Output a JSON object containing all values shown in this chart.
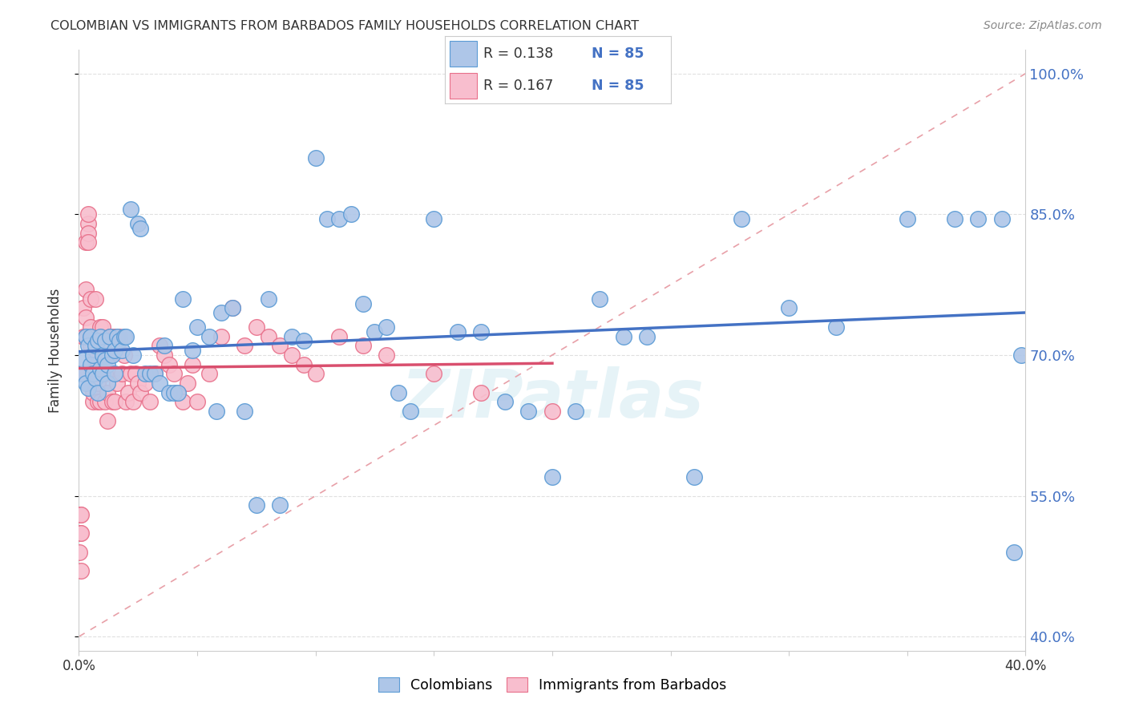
{
  "title": "COLOMBIAN VS IMMIGRANTS FROM BARBADOS FAMILY HOUSEHOLDS CORRELATION CHART",
  "source": "Source: ZipAtlas.com",
  "ylabel": "Family Households",
  "xlim": [
    0.0,
    0.4
  ],
  "ylim": [
    0.385,
    1.025
  ],
  "yticks": [
    0.4,
    0.55,
    0.7,
    0.85,
    1.0
  ],
  "xtick_positions": [
    0.0,
    0.05,
    0.1,
    0.15,
    0.2,
    0.25,
    0.3,
    0.35,
    0.4
  ],
  "xtick_labels": [
    "0.0%",
    "",
    "",
    "",
    "",
    "",
    "",
    "",
    "40.0%"
  ],
  "colombian_color": "#aec6e8",
  "barbados_color": "#f8bece",
  "colombian_edge_color": "#5b9bd5",
  "barbados_edge_color": "#e8708a",
  "colombian_line_color": "#4472c4",
  "barbados_line_color": "#d94f6e",
  "diag_line_color": "#e8a0a8",
  "legend_r_col": "R = 0.138",
  "legend_n_col": "N = 85",
  "legend_r_bar": "R = 0.167",
  "legend_n_bar": "N = 85",
  "legend_text_color": "#333333",
  "legend_val_color": "#4472c4",
  "colombian_R": 0.138,
  "barbados_R": 0.167,
  "colombian_x": [
    0.001,
    0.002,
    0.003,
    0.003,
    0.004,
    0.004,
    0.005,
    0.005,
    0.006,
    0.006,
    0.007,
    0.007,
    0.008,
    0.008,
    0.009,
    0.009,
    0.01,
    0.01,
    0.011,
    0.011,
    0.012,
    0.012,
    0.013,
    0.014,
    0.015,
    0.015,
    0.016,
    0.017,
    0.018,
    0.019,
    0.02,
    0.022,
    0.023,
    0.025,
    0.026,
    0.028,
    0.03,
    0.032,
    0.034,
    0.036,
    0.038,
    0.04,
    0.042,
    0.044,
    0.048,
    0.05,
    0.055,
    0.058,
    0.06,
    0.065,
    0.07,
    0.075,
    0.08,
    0.085,
    0.09,
    0.095,
    0.1,
    0.105,
    0.11,
    0.115,
    0.12,
    0.125,
    0.13,
    0.135,
    0.14,
    0.15,
    0.16,
    0.17,
    0.18,
    0.19,
    0.2,
    0.21,
    0.22,
    0.23,
    0.24,
    0.26,
    0.28,
    0.3,
    0.32,
    0.35,
    0.37,
    0.38,
    0.39,
    0.395,
    0.398
  ],
  "colombian_y": [
    0.68,
    0.695,
    0.67,
    0.72,
    0.665,
    0.71,
    0.69,
    0.72,
    0.7,
    0.68,
    0.71,
    0.675,
    0.66,
    0.715,
    0.685,
    0.72,
    0.7,
    0.68,
    0.695,
    0.715,
    0.67,
    0.69,
    0.72,
    0.7,
    0.705,
    0.68,
    0.72,
    0.715,
    0.705,
    0.72,
    0.72,
    0.855,
    0.7,
    0.84,
    0.835,
    0.68,
    0.68,
    0.68,
    0.67,
    0.71,
    0.66,
    0.66,
    0.66,
    0.76,
    0.705,
    0.73,
    0.72,
    0.64,
    0.745,
    0.75,
    0.64,
    0.54,
    0.76,
    0.54,
    0.72,
    0.715,
    0.91,
    0.845,
    0.845,
    0.85,
    0.755,
    0.725,
    0.73,
    0.66,
    0.64,
    0.845,
    0.725,
    0.725,
    0.65,
    0.64,
    0.57,
    0.64,
    0.76,
    0.72,
    0.72,
    0.57,
    0.845,
    0.75,
    0.73,
    0.845,
    0.845,
    0.845,
    0.845,
    0.49,
    0.7
  ],
  "barbados_x": [
    0.0003,
    0.0005,
    0.0007,
    0.001,
    0.001,
    0.001,
    0.002,
    0.002,
    0.002,
    0.003,
    0.003,
    0.003,
    0.003,
    0.004,
    0.004,
    0.004,
    0.004,
    0.005,
    0.005,
    0.005,
    0.005,
    0.006,
    0.006,
    0.006,
    0.007,
    0.007,
    0.007,
    0.008,
    0.008,
    0.008,
    0.009,
    0.009,
    0.009,
    0.01,
    0.01,
    0.01,
    0.011,
    0.011,
    0.012,
    0.012,
    0.013,
    0.013,
    0.014,
    0.014,
    0.015,
    0.015,
    0.016,
    0.017,
    0.018,
    0.019,
    0.02,
    0.021,
    0.022,
    0.023,
    0.024,
    0.025,
    0.026,
    0.028,
    0.03,
    0.032,
    0.034,
    0.036,
    0.038,
    0.04,
    0.042,
    0.044,
    0.046,
    0.048,
    0.05,
    0.055,
    0.06,
    0.065,
    0.07,
    0.075,
    0.08,
    0.085,
    0.09,
    0.095,
    0.1,
    0.11,
    0.12,
    0.13,
    0.15,
    0.17,
    0.2
  ],
  "barbados_y": [
    0.49,
    0.51,
    0.53,
    0.47,
    0.51,
    0.53,
    0.68,
    0.72,
    0.75,
    0.72,
    0.74,
    0.77,
    0.82,
    0.84,
    0.83,
    0.85,
    0.82,
    0.71,
    0.72,
    0.73,
    0.76,
    0.65,
    0.66,
    0.7,
    0.68,
    0.69,
    0.76,
    0.65,
    0.67,
    0.69,
    0.65,
    0.68,
    0.73,
    0.72,
    0.73,
    0.71,
    0.68,
    0.65,
    0.66,
    0.63,
    0.72,
    0.7,
    0.72,
    0.65,
    0.65,
    0.72,
    0.67,
    0.72,
    0.68,
    0.7,
    0.65,
    0.66,
    0.68,
    0.65,
    0.68,
    0.67,
    0.66,
    0.67,
    0.65,
    0.68,
    0.71,
    0.7,
    0.69,
    0.68,
    0.66,
    0.65,
    0.67,
    0.69,
    0.65,
    0.68,
    0.72,
    0.75,
    0.71,
    0.73,
    0.72,
    0.71,
    0.7,
    0.69,
    0.68,
    0.72,
    0.71,
    0.7,
    0.68,
    0.66,
    0.64
  ],
  "watermark": "ZIPatlas",
  "bg_color": "#ffffff",
  "grid_color": "#e0e0e0"
}
